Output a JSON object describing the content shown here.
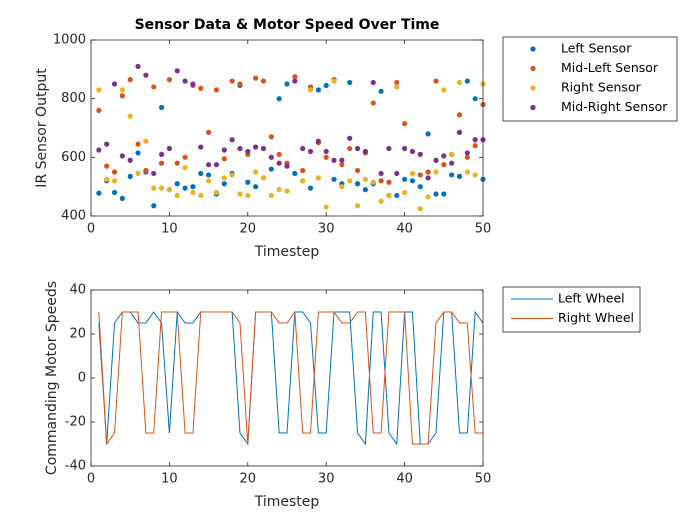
{
  "chart_data": [
    {
      "type": "scatter",
      "title": "Sensor Data & Motor Speed Over Time",
      "xlabel": "Timestep",
      "ylabel": "IR Sensor Output",
      "x": [
        1,
        2,
        3,
        4,
        5,
        6,
        7,
        8,
        9,
        10,
        11,
        12,
        13,
        14,
        15,
        16,
        17,
        18,
        19,
        20,
        21,
        22,
        23,
        24,
        25,
        26,
        27,
        28,
        29,
        30,
        31,
        32,
        33,
        34,
        35,
        36,
        37,
        38,
        39,
        40,
        41,
        42,
        43,
        44,
        45,
        46,
        47,
        48,
        49,
        50
      ],
      "xlim": [
        0,
        50
      ],
      "xticks": [
        0,
        10,
        20,
        30,
        40,
        50
      ],
      "ylim": [
        400,
        1000
      ],
      "yticks": [
        400,
        600,
        800,
        1000
      ],
      "legend": "outside-right",
      "series": [
        {
          "name": "Left Sensor",
          "color": "#0072BD",
          "values": [
            478,
            520,
            480,
            460,
            535,
            615,
            550,
            435,
            770,
            490,
            510,
            495,
            500,
            545,
            540,
            475,
            510,
            545,
            845,
            515,
            500,
            530,
            560,
            800,
            850,
            545,
            520,
            495,
            830,
            845,
            525,
            510,
            855,
            510,
            490,
            510,
            825,
            470,
            470,
            525,
            520,
            500,
            680,
            475,
            475,
            540,
            535,
            860,
            800,
            525
          ]
        },
        {
          "name": "Mid-Left Sensor",
          "color": "#D95319",
          "values": [
            760,
            570,
            550,
            810,
            865,
            645,
            555,
            840,
            580,
            865,
            580,
            600,
            845,
            835,
            685,
            830,
            595,
            860,
            850,
            610,
            870,
            860,
            670,
            610,
            580,
            875,
            555,
            840,
            650,
            600,
            865,
            575,
            630,
            555,
            615,
            785,
            520,
            515,
            855,
            715,
            620,
            540,
            550,
            860,
            575,
            610,
            745,
            600,
            640,
            780
          ]
        },
        {
          "name": "Right Sensor",
          "color": "#EDB120",
          "values": [
            830,
            525,
            520,
            830,
            740,
            545,
            655,
            495,
            495,
            490,
            470,
            565,
            480,
            470,
            520,
            480,
            530,
            540,
            475,
            470,
            550,
            530,
            470,
            490,
            485,
            860,
            520,
            830,
            530,
            430,
            860,
            500,
            520,
            435,
            525,
            515,
            450,
            470,
            840,
            480,
            545,
            425,
            465,
            550,
            830,
            610,
            855,
            550,
            540,
            850
          ]
        },
        {
          "name": "Mid-Right Sensor",
          "color": "#7E2F8E",
          "values": [
            625,
            645,
            850,
            605,
            590,
            910,
            880,
            545,
            610,
            630,
            895,
            860,
            850,
            635,
            575,
            575,
            625,
            660,
            630,
            620,
            635,
            630,
            600,
            580,
            570,
            860,
            630,
            620,
            655,
            620,
            590,
            590,
            665,
            630,
            620,
            855,
            545,
            630,
            545,
            630,
            620,
            610,
            530,
            590,
            605,
            580,
            685,
            615,
            660,
            660
          ]
        }
      ]
    },
    {
      "type": "line",
      "xlabel": "Timestep",
      "ylabel": "Commanding Motor Speeds",
      "x": [
        1,
        2,
        3,
        4,
        5,
        6,
        7,
        8,
        9,
        10,
        11,
        12,
        13,
        14,
        15,
        16,
        17,
        18,
        19,
        20,
        21,
        22,
        23,
        24,
        25,
        26,
        27,
        28,
        29,
        30,
        31,
        32,
        33,
        34,
        35,
        36,
        37,
        38,
        39,
        40,
        41,
        42,
        43,
        44,
        45,
        46,
        47,
        48,
        49,
        50
      ],
      "xlim": [
        0,
        50
      ],
      "xticks": [
        0,
        10,
        20,
        30,
        40,
        50
      ],
      "ylim": [
        -40,
        40
      ],
      "yticks": [
        -40,
        -20,
        0,
        20,
        40
      ],
      "legend": "outside-right",
      "series": [
        {
          "name": "Left Wheel",
          "color": "#0072BD",
          "values": [
            25,
            -30,
            25,
            30,
            30,
            25,
            25,
            30,
            25,
            -25,
            30,
            25,
            25,
            30,
            30,
            30,
            30,
            30,
            -25,
            -30,
            30,
            30,
            30,
            -25,
            -25,
            30,
            30,
            25,
            -25,
            -25,
            30,
            30,
            30,
            -25,
            -30,
            30,
            30,
            -25,
            -30,
            30,
            30,
            -30,
            -30,
            -25,
            30,
            30,
            -25,
            -25,
            30,
            25
          ]
        },
        {
          "name": "Right Wheel",
          "color": "#D95319",
          "values": [
            30,
            -30,
            -25,
            30,
            30,
            30,
            -25,
            -25,
            30,
            30,
            30,
            -25,
            -25,
            30,
            30,
            30,
            30,
            30,
            25,
            -30,
            30,
            30,
            30,
            25,
            25,
            30,
            -25,
            -25,
            30,
            30,
            30,
            25,
            25,
            30,
            30,
            -25,
            -25,
            30,
            30,
            30,
            -30,
            -30,
            -30,
            25,
            30,
            30,
            25,
            25,
            -25,
            -25
          ]
        }
      ]
    }
  ]
}
